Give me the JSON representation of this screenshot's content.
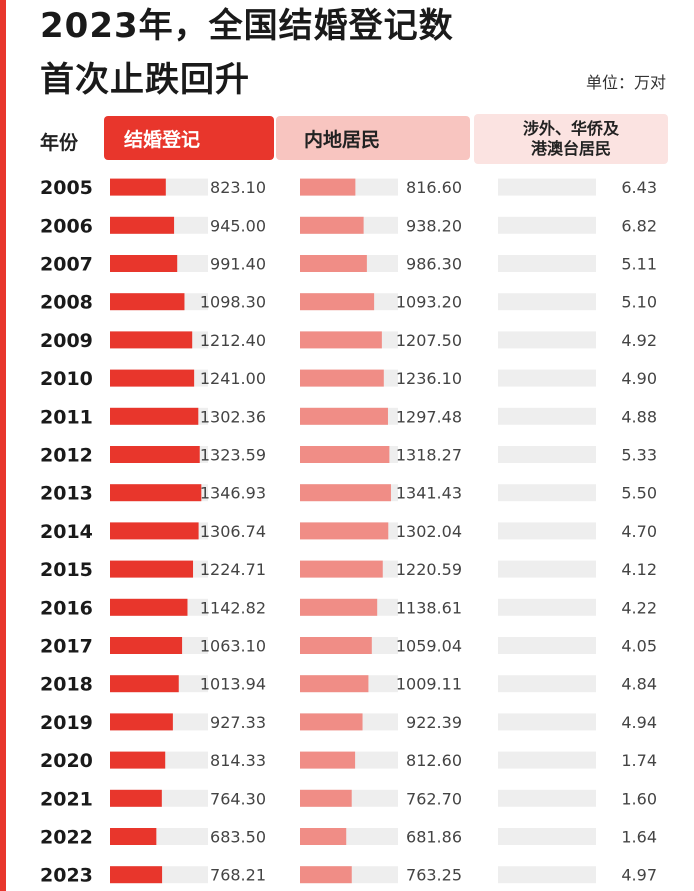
{
  "header": {
    "title_line1": "2023年，全国结婚登记数",
    "title_line2": "首次止跌回升",
    "unit": "单位：万对"
  },
  "columns": {
    "year": "年份",
    "total": "结婚登记",
    "mainland": "内地居民",
    "foreign_line1": "涉外、华侨及",
    "foreign_line2": "港澳台居民"
  },
  "colors": {
    "accent": "#e8362c",
    "mainland_bar": "#f08d86",
    "track": "#eeeeee",
    "foreign_header": "#fbe3e1"
  },
  "chart_data": {
    "type": "table",
    "title": "2023年，全国结婚登记数 首次止跌回升",
    "unit": "万对",
    "categories": [
      "2005",
      "2006",
      "2007",
      "2008",
      "2009",
      "2010",
      "2011",
      "2012",
      "2013",
      "2014",
      "2015",
      "2016",
      "2017",
      "2018",
      "2019",
      "2020",
      "2021",
      "2022",
      "2023"
    ],
    "series": [
      {
        "name": "结婚登记",
        "values": [
          823.1,
          945.0,
          991.4,
          1098.3,
          1212.4,
          1241.0,
          1302.36,
          1323.59,
          1346.93,
          1306.74,
          1224.71,
          1142.82,
          1063.1,
          1013.94,
          927.33,
          814.33,
          764.3,
          683.5,
          768.21
        ],
        "labels": [
          "823.10",
          "945.00",
          "991.40",
          "1098.30",
          "1212.40",
          "1241.00",
          "1302.36",
          "1323.59",
          "1346.93",
          "1306.74",
          "1224.71",
          "1142.82",
          "1063.10",
          "1013.94",
          "927.33",
          "814.33",
          "764.30",
          "683.50",
          "768.21"
        ]
      },
      {
        "name": "内地居民",
        "values": [
          816.6,
          938.2,
          986.3,
          1093.2,
          1207.5,
          1236.1,
          1297.48,
          1318.27,
          1341.43,
          1302.04,
          1220.59,
          1138.61,
          1059.04,
          1009.11,
          922.39,
          812.6,
          762.7,
          681.86,
          763.25
        ],
        "labels": [
          "816.60",
          "938.20",
          "986.30",
          "1093.20",
          "1207.50",
          "1236.10",
          "1297.48",
          "1318.27",
          "1341.43",
          "1302.04",
          "1220.59",
          "1138.61",
          "1059.04",
          "1009.11",
          "922.39",
          "812.60",
          "762.70",
          "681.86",
          "763.25"
        ]
      },
      {
        "name": "涉外、华侨及港澳台居民",
        "values": [
          6.43,
          6.82,
          5.11,
          5.1,
          4.92,
          4.9,
          4.88,
          5.33,
          5.5,
          4.7,
          4.12,
          4.22,
          4.05,
          4.84,
          4.94,
          1.74,
          1.6,
          1.64,
          4.97
        ],
        "labels": [
          "6.43",
          "6.82",
          "5.11",
          "5.10",
          "4.92",
          "4.90",
          "4.88",
          "5.33",
          "5.50",
          "4.70",
          "4.12",
          "4.22",
          "4.05",
          "4.84",
          "4.94",
          "1.74",
          "1.60",
          "1.64",
          "4.97"
        ]
      }
    ]
  }
}
